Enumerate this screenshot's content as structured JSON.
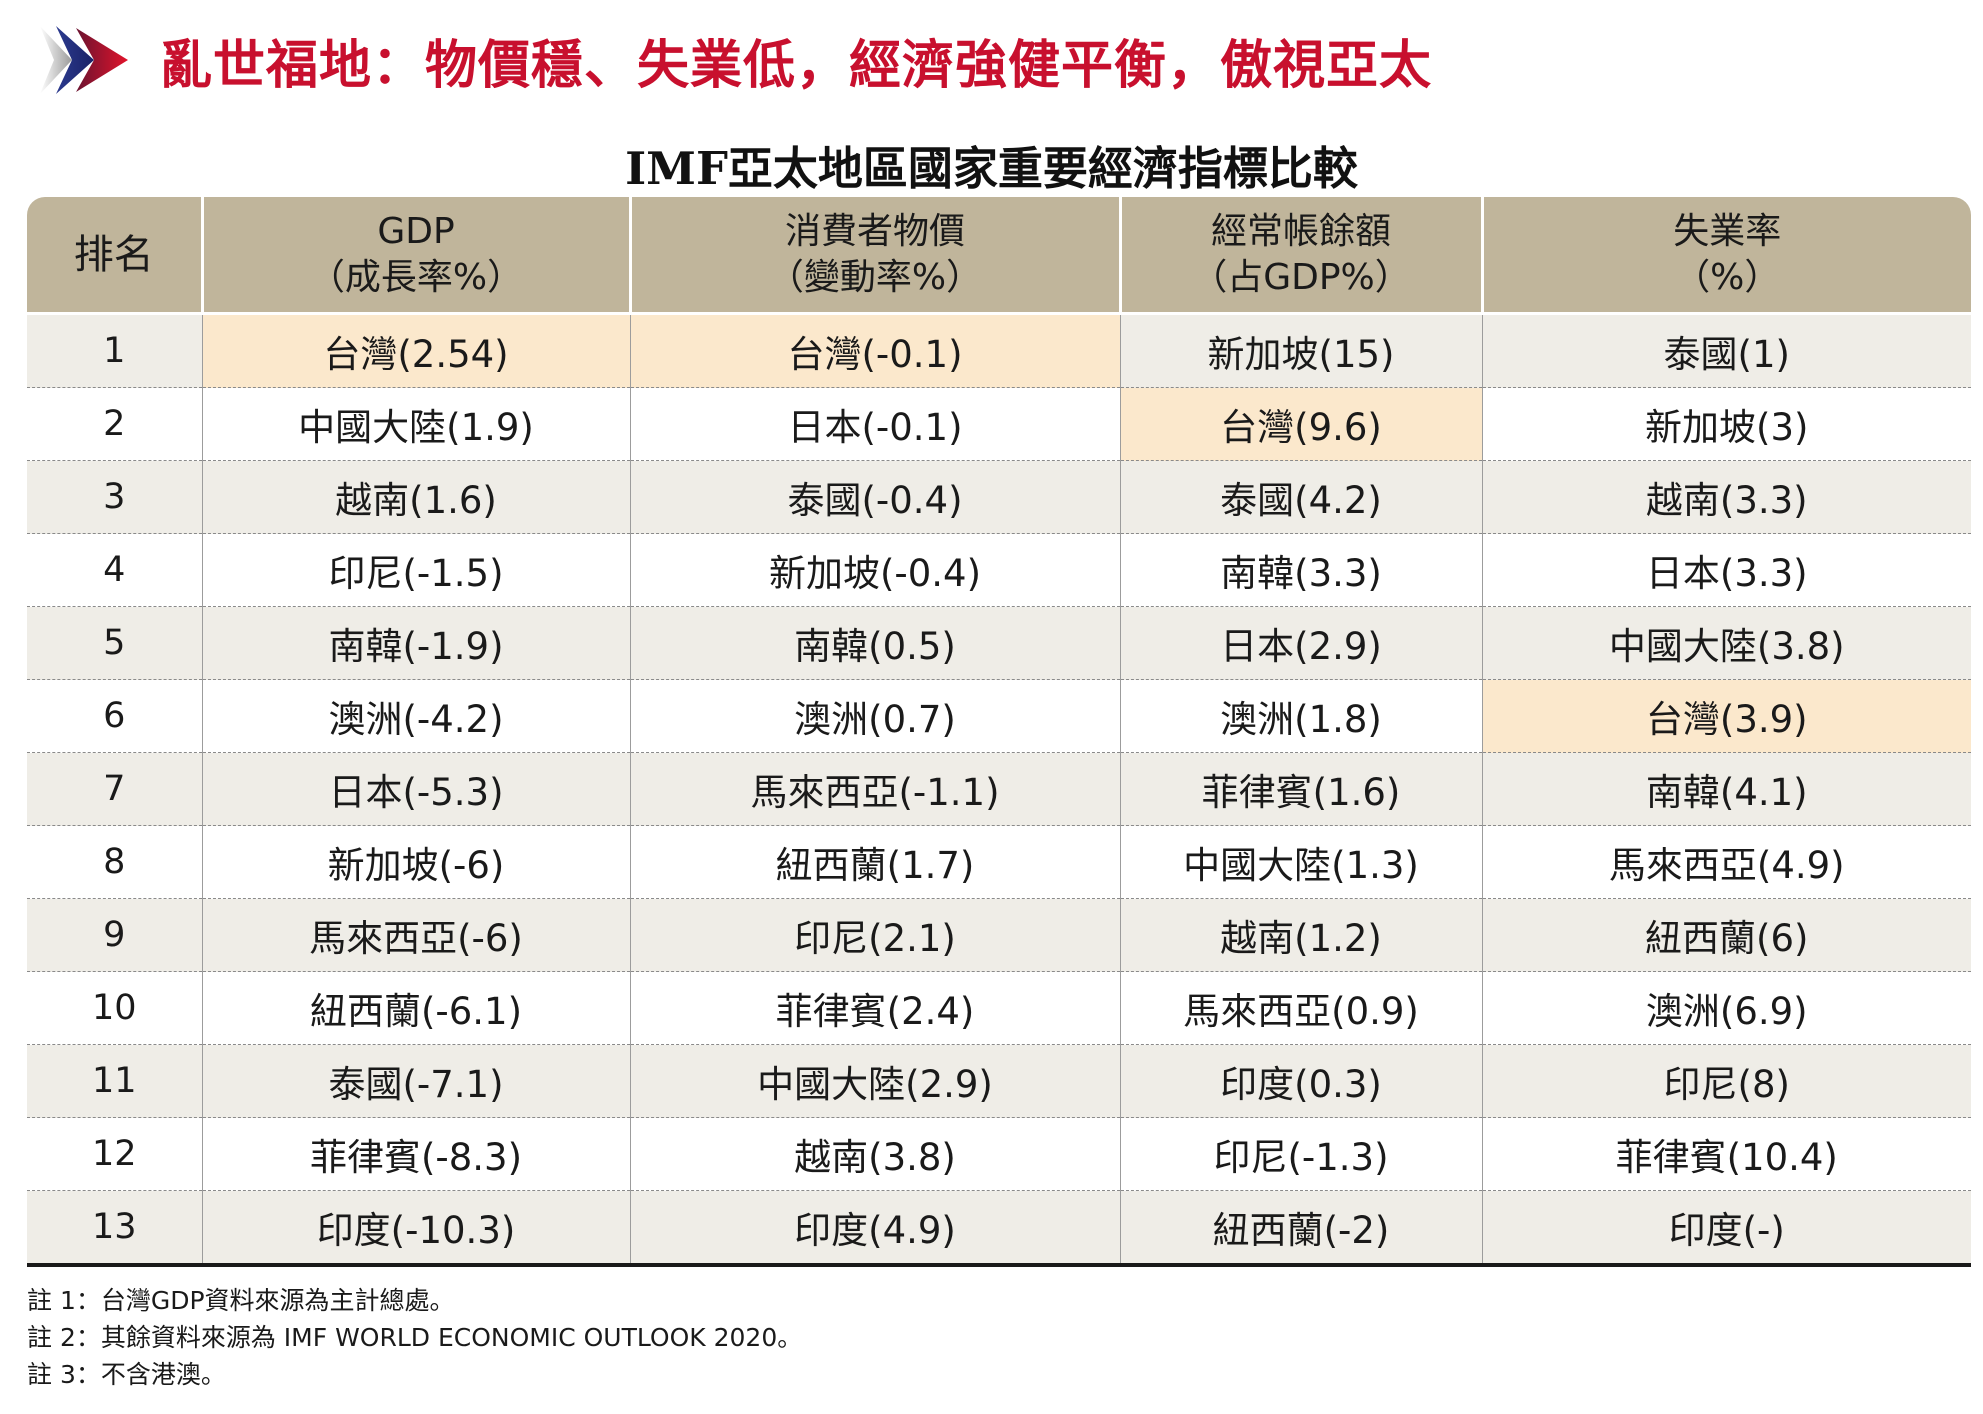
{
  "headline": "亂世福地：物價穩、失業低，經濟強健平衡，傲視亞太",
  "subtitle": "IMF亞太地區國家重要經濟指標比較",
  "colors": {
    "headline": "#c8102e",
    "header_bg": "#c0b59b",
    "row_alt_bg": "#efede7",
    "highlight_bg": "#fbe8cc"
  },
  "table": {
    "headers": [
      {
        "line1": "排名",
        "line2": ""
      },
      {
        "line1": "GDP",
        "line2": "（成長率%）"
      },
      {
        "line1": "消費者物價",
        "line2": "（變動率%）"
      },
      {
        "line1": "經常帳餘額",
        "line2": "（占GDP%）"
      },
      {
        "line1": "失業率",
        "line2": "（%）"
      }
    ],
    "rows": [
      [
        "1",
        "台灣(2.54)",
        "台灣(-0.1)",
        "新加坡(15)",
        "泰國(1)"
      ],
      [
        "2",
        "中國大陸(1.9)",
        "日本(-0.1)",
        "台灣(9.6)",
        "新加坡(3)"
      ],
      [
        "3",
        "越南(1.6)",
        "泰國(-0.4)",
        "泰國(4.2)",
        "越南(3.3)"
      ],
      [
        "4",
        "印尼(-1.5)",
        "新加坡(-0.4)",
        "南韓(3.3)",
        "日本(3.3)"
      ],
      [
        "5",
        "南韓(-1.9)",
        "南韓(0.5)",
        "日本(2.9)",
        "中國大陸(3.8)"
      ],
      [
        "6",
        "澳洲(-4.2)",
        "澳洲(0.7)",
        "澳洲(1.8)",
        "台灣(3.9)"
      ],
      [
        "7",
        "日本(-5.3)",
        "馬來西亞(-1.1)",
        "菲律賓(1.6)",
        "南韓(4.1)"
      ],
      [
        "8",
        "新加坡(-6)",
        "紐西蘭(1.7)",
        "中國大陸(1.3)",
        "馬來西亞(4.9)"
      ],
      [
        "9",
        "馬來西亞(-6)",
        "印尼(2.1)",
        "越南(1.2)",
        "紐西蘭(6)"
      ],
      [
        "10",
        "紐西蘭(-6.1)",
        "菲律賓(2.4)",
        "馬來西亞(0.9)",
        "澳洲(6.9)"
      ],
      [
        "11",
        "泰國(-7.1)",
        "中國大陸(2.9)",
        "印度(0.3)",
        "印尼(8)"
      ],
      [
        "12",
        "菲律賓(-8.3)",
        "越南(3.8)",
        "印尼(-1.3)",
        "菲律賓(10.4)"
      ],
      [
        "13",
        "印度(-10.3)",
        "印度(4.9)",
        "紐西蘭(-2)",
        "印度(-)"
      ]
    ],
    "highlights": [
      [
        0,
        1
      ],
      [
        0,
        2
      ],
      [
        1,
        3
      ],
      [
        5,
        4
      ]
    ]
  },
  "notes": [
    "註 1：台灣GDP資料來源為主計總處。",
    "註 2：其餘資料來源為 IMF WORLD ECONOMIC OUTLOOK 2020。",
    "註 3：不含港澳。"
  ]
}
